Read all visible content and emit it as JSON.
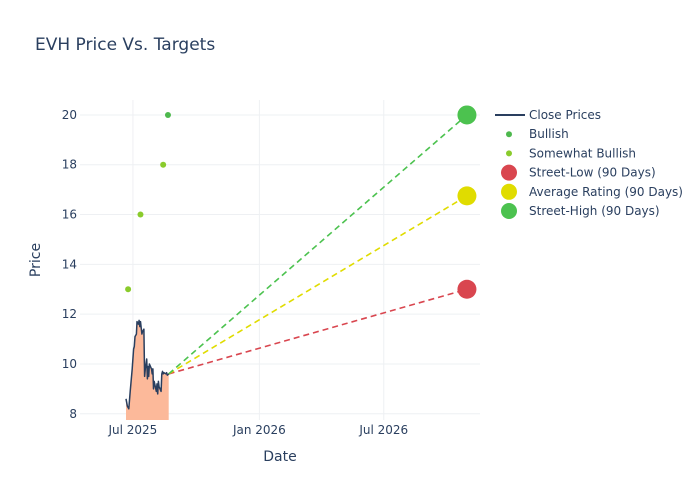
{
  "chart_data": {
    "type": "line",
    "title": "EVH Price Vs. Targets",
    "xlabel": "Date",
    "ylabel": "Price",
    "x_range": [
      "2025-04-15",
      "2026-11-18"
    ],
    "ylim": [
      7.75,
      20.6
    ],
    "grid": true,
    "legend_position": "right",
    "x_ticks": [
      {
        "date": "2025-07-01",
        "label": "Jul 2025"
      },
      {
        "date": "2026-01-01",
        "label": "Jan 2026"
      },
      {
        "date": "2026-07-01",
        "label": "Jul 2026"
      }
    ],
    "y_ticks": [
      8,
      10,
      12,
      14,
      16,
      18,
      20
    ],
    "close_prices": {
      "name": "Close Prices",
      "color": "#2a3f5f",
      "fill_color": "#fcb99a",
      "points": [
        [
          "2025-06-21",
          8.6
        ],
        [
          "2025-06-23",
          8.3
        ],
        [
          "2025-06-25",
          8.2
        ],
        [
          "2025-06-27",
          8.9
        ],
        [
          "2025-06-30",
          9.8
        ],
        [
          "2025-07-02",
          10.6
        ],
        [
          "2025-07-03",
          10.7
        ],
        [
          "2025-07-04",
          11.1
        ],
        [
          "2025-07-06",
          11.2
        ],
        [
          "2025-07-07",
          11.7
        ],
        [
          "2025-07-09",
          11.6
        ],
        [
          "2025-07-10",
          11.75
        ],
        [
          "2025-07-11",
          11.5
        ],
        [
          "2025-07-12",
          11.7
        ],
        [
          "2025-07-14",
          11.2
        ],
        [
          "2025-07-15",
          11.3
        ],
        [
          "2025-07-17",
          11.4
        ],
        [
          "2025-07-18",
          9.5
        ],
        [
          "2025-07-19",
          9.8
        ],
        [
          "2025-07-21",
          10.2
        ],
        [
          "2025-07-22",
          9.4
        ],
        [
          "2025-07-23",
          9.9
        ],
        [
          "2025-07-24",
          9.5
        ],
        [
          "2025-07-25",
          10.0
        ],
        [
          "2025-07-28",
          9.8
        ],
        [
          "2025-07-29",
          9.6
        ],
        [
          "2025-07-30",
          9.8
        ],
        [
          "2025-07-31",
          9.0
        ],
        [
          "2025-08-01",
          9.3
        ],
        [
          "2025-08-04",
          8.9
        ],
        [
          "2025-08-05",
          9.2
        ],
        [
          "2025-08-06",
          8.8
        ],
        [
          "2025-08-07",
          9.3
        ],
        [
          "2025-08-08",
          9.1
        ],
        [
          "2025-08-11",
          8.9
        ],
        [
          "2025-08-12",
          9.6
        ],
        [
          "2025-08-13",
          9.7
        ],
        [
          "2025-08-14",
          9.6
        ],
        [
          "2025-08-15",
          9.65
        ],
        [
          "2025-08-18",
          9.6
        ],
        [
          "2025-08-19",
          9.65
        ],
        [
          "2025-08-20",
          9.55
        ],
        [
          "2025-08-22",
          9.6
        ]
      ]
    },
    "analyst_ratings": [
      {
        "name": "Bullish",
        "color": "#4db84d",
        "points": [
          [
            "2025-08-21",
            20
          ]
        ]
      },
      {
        "name": "Somewhat Bullish",
        "color": "#8acb2c",
        "points": [
          [
            "2025-06-24",
            13
          ],
          [
            "2025-07-12",
            16
          ],
          [
            "2025-08-14",
            18
          ]
        ]
      }
    ],
    "targets": {
      "start": [
        "2025-08-22",
        9.6
      ],
      "end_date": "2026-10-30",
      "series": [
        {
          "name": "Street-Low (90 Days)",
          "value": 13.0,
          "color": "#d9464f"
        },
        {
          "name": "Average Rating (90 Days)",
          "value": 16.75,
          "color": "#e0dc00"
        },
        {
          "name": "Street-High (90 Days)",
          "value": 20.0,
          "color": "#4cc24f"
        }
      ]
    },
    "legend": [
      {
        "name": "Close Prices",
        "kind": "line",
        "color": "#2a3f5f"
      },
      {
        "name": "Bullish",
        "kind": "dot",
        "color": "#4db84d"
      },
      {
        "name": "Somewhat Bullish",
        "kind": "dot",
        "color": "#8acb2c"
      },
      {
        "name": "Street-Low (90 Days)",
        "kind": "bigdot",
        "color": "#d9464f"
      },
      {
        "name": "Average Rating (90 Days)",
        "kind": "bigdot",
        "color": "#e0dc00"
      },
      {
        "name": "Street-High (90 Days)",
        "kind": "bigdot",
        "color": "#4cc24f"
      }
    ]
  }
}
